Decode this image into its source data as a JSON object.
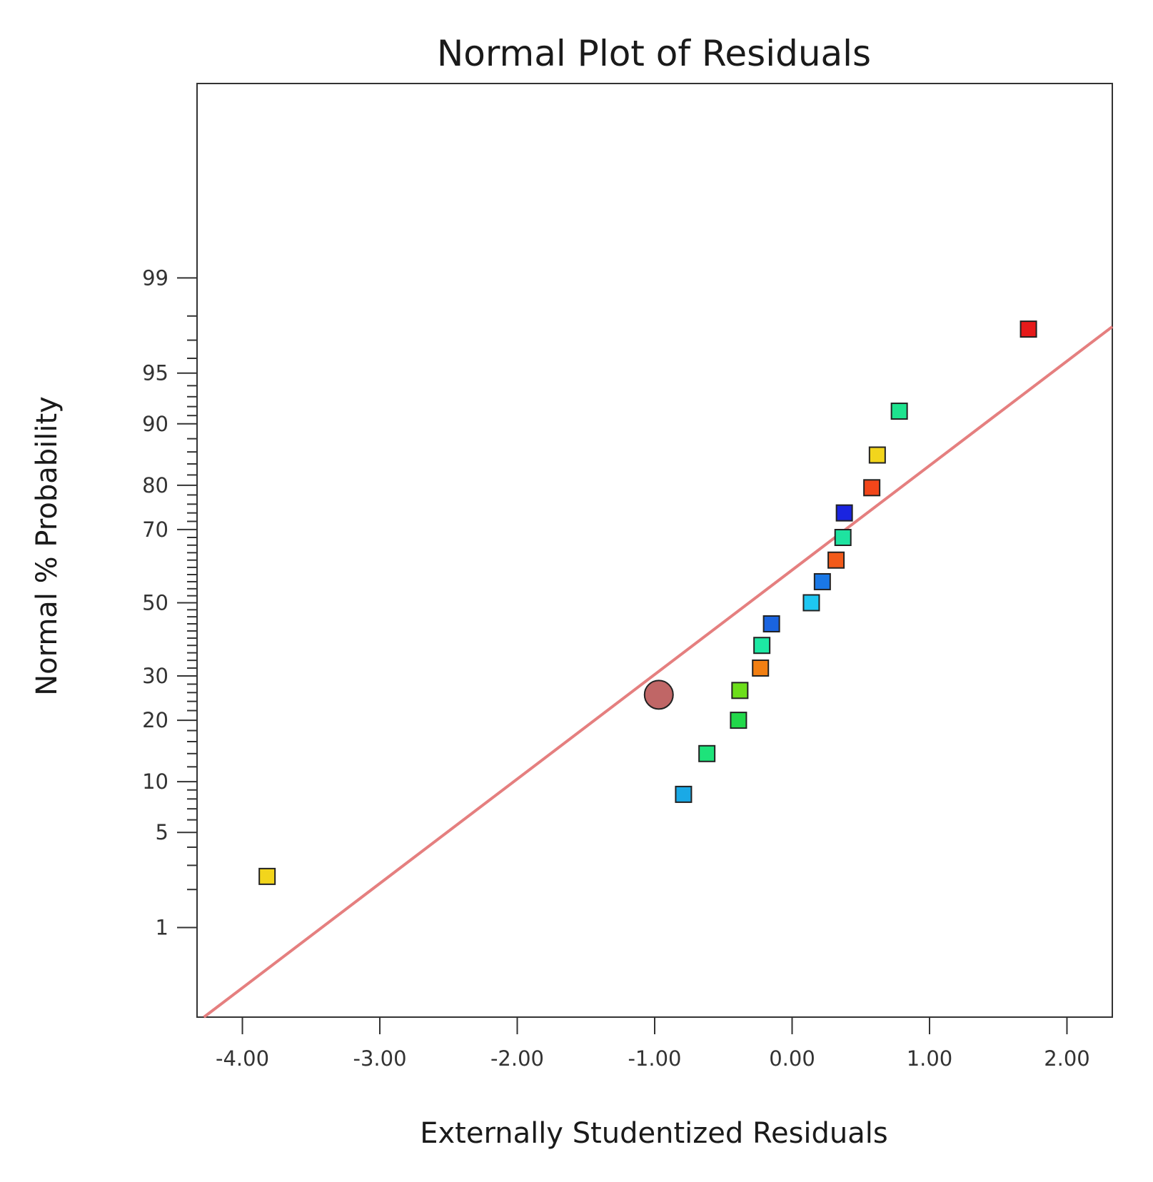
{
  "chart_data": {
    "type": "scatter",
    "title": "Normal Plot of Residuals",
    "xlabel": "Externally Studentized Residuals",
    "ylabel": "Normal % Probability",
    "xlim": [
      -4.33,
      2.33
    ],
    "ylim_probability": [
      0.15,
      99.99
    ],
    "x_ticks": [
      {
        "value": -4.0,
        "label": "-4.00"
      },
      {
        "value": -3.0,
        "label": "-3.00"
      },
      {
        "value": -2.0,
        "label": "-2.00"
      },
      {
        "value": -1.0,
        "label": "-1.00"
      },
      {
        "value": 0.0,
        "label": "0.00"
      },
      {
        "value": 1.0,
        "label": "1.00"
      },
      {
        "value": 2.0,
        "label": "2.00"
      }
    ],
    "y_ticks": [
      {
        "value": 1,
        "label": "1"
      },
      {
        "value": 5,
        "label": "5"
      },
      {
        "value": 10,
        "label": "10"
      },
      {
        "value": 20,
        "label": "20"
      },
      {
        "value": 30,
        "label": "30"
      },
      {
        "value": 50,
        "label": "50"
      },
      {
        "value": 70,
        "label": "70"
      },
      {
        "value": 80,
        "label": "80"
      },
      {
        "value": 90,
        "label": "90"
      },
      {
        "value": 95,
        "label": "95"
      },
      {
        "value": 99,
        "label": "99"
      }
    ],
    "y_minor_ticks": [
      2,
      3,
      4,
      6,
      7,
      8,
      9,
      12,
      14,
      16,
      18,
      22,
      24,
      26,
      28,
      32,
      34,
      36,
      38,
      40,
      42,
      44,
      46,
      48,
      52,
      54,
      56,
      58,
      60,
      62,
      64,
      66,
      68,
      72,
      74,
      76,
      78,
      82,
      84,
      86,
      88,
      91,
      92,
      93,
      94,
      96,
      97,
      98
    ],
    "reference_line": {
      "points": [
        [
          -4.28,
          0.15
        ],
        [
          2.33,
          97.6
        ]
      ],
      "color": "#e57f7f"
    },
    "highlighted_point": {
      "x": -0.97,
      "y": 25.5,
      "color": "#c06666"
    },
    "series": [
      {
        "name": "residuals",
        "points": [
          {
            "x": -3.82,
            "y": 2.5,
            "color": "#f2d51c"
          },
          {
            "x": -0.79,
            "y": 8.5,
            "color": "#1aa9e6"
          },
          {
            "x": -0.62,
            "y": 14.0,
            "color": "#1ee37a"
          },
          {
            "x": -0.39,
            "y": 20.0,
            "color": "#22d84a"
          },
          {
            "x": -0.38,
            "y": 26.5,
            "color": "#6cde1a"
          },
          {
            "x": -0.23,
            "y": 32.0,
            "color": "#f27f12"
          },
          {
            "x": -0.22,
            "y": 38.0,
            "color": "#1de8a3"
          },
          {
            "x": -0.15,
            "y": 44.0,
            "color": "#1a64e0"
          },
          {
            "x": 0.14,
            "y": 50.0,
            "color": "#1ec7f2"
          },
          {
            "x": 0.22,
            "y": 56.0,
            "color": "#1a78e6"
          },
          {
            "x": 0.32,
            "y": 62.0,
            "color": "#f25a1a"
          },
          {
            "x": 0.37,
            "y": 68.0,
            "color": "#1ee3a0"
          },
          {
            "x": 0.38,
            "y": 74.0,
            "color": "#1a24e0"
          },
          {
            "x": 0.58,
            "y": 79.5,
            "color": "#f2461a"
          },
          {
            "x": 0.62,
            "y": 85.5,
            "color": "#f2d51c"
          },
          {
            "x": 0.78,
            "y": 91.5,
            "color": "#1ee38f"
          },
          {
            "x": 1.72,
            "y": 97.5,
            "color": "#e61a1a"
          }
        ]
      }
    ]
  }
}
